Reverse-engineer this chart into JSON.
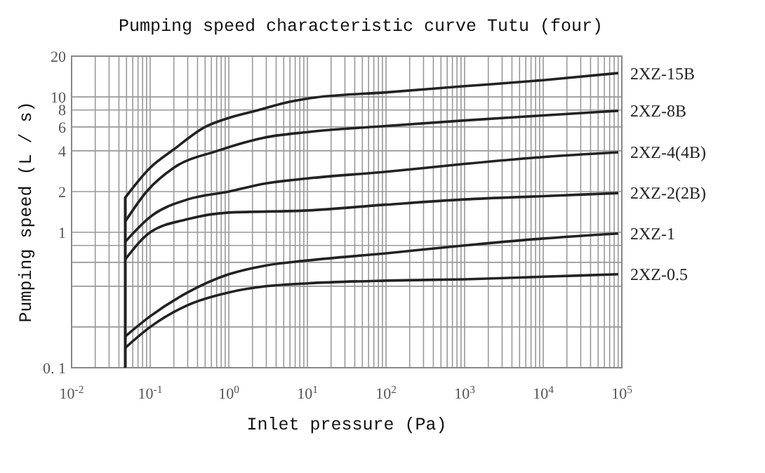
{
  "chart_data": {
    "type": "line",
    "title": "Pumping speed characteristic curve Tutu (four)",
    "xlabel": "Inlet pressure (Pa)",
    "ylabel": "Pumping speed (L / s)",
    "log": "xy",
    "grid": true,
    "marker": "none",
    "line_style": "solid",
    "xlim": [
      0.01,
      100000
    ],
    "ylim": [
      0.1,
      20
    ],
    "xticks": [
      {
        "value": 0.01,
        "label": "10$^{-2}$"
      },
      {
        "value": 0.02,
        "label": null
      },
      {
        "value": 0.03,
        "label": null
      },
      {
        "value": 0.04,
        "label": null
      },
      {
        "value": 0.05,
        "label": null
      },
      {
        "value": 0.06,
        "label": null
      },
      {
        "value": 0.07,
        "label": null
      },
      {
        "value": 0.08,
        "label": null
      },
      {
        "value": 0.09,
        "label": null
      },
      {
        "value": 0.1,
        "label": "10$^{-1}$"
      },
      {
        "value": 0.2,
        "label": null
      },
      {
        "value": 0.3,
        "label": null
      },
      {
        "value": 0.4,
        "label": null
      },
      {
        "value": 0.5,
        "label": null
      },
      {
        "value": 0.6,
        "label": null
      },
      {
        "value": 0.7,
        "label": null
      },
      {
        "value": 0.8,
        "label": null
      },
      {
        "value": 0.9,
        "label": null
      },
      {
        "value": 1,
        "label": "10$^{0}$"
      },
      {
        "value": 2,
        "label": null
      },
      {
        "value": 3,
        "label": null
      },
      {
        "value": 4,
        "label": null
      },
      {
        "value": 5,
        "label": null
      },
      {
        "value": 6,
        "label": null
      },
      {
        "value": 7,
        "label": null
      },
      {
        "value": 8,
        "label": null
      },
      {
        "value": 9,
        "label": null
      },
      {
        "value": 10,
        "label": "10$^{1}$"
      },
      {
        "value": 20,
        "label": null
      },
      {
        "value": 30,
        "label": null
      },
      {
        "value": 40,
        "label": null
      },
      {
        "value": 50,
        "label": null
      },
      {
        "value": 60,
        "label": null
      },
      {
        "value": 70,
        "label": null
      },
      {
        "value": 80,
        "label": null
      },
      {
        "value": 90,
        "label": null
      },
      {
        "value": 100,
        "label": "10$^{2}$"
      },
      {
        "value": 200,
        "label": null
      },
      {
        "value": 300,
        "label": null
      },
      {
        "value": 400,
        "label": null
      },
      {
        "value": 500,
        "label": null
      },
      {
        "value": 600,
        "label": null
      },
      {
        "value": 700,
        "label": null
      },
      {
        "value": 800,
        "label": null
      },
      {
        "value": 900,
        "label": null
      },
      {
        "value": 1000,
        "label": "10$^{3}$"
      },
      {
        "value": 2000,
        "label": null
      },
      {
        "value": 3000,
        "label": null
      },
      {
        "value": 4000,
        "label": null
      },
      {
        "value": 5000,
        "label": null
      },
      {
        "value": 6000,
        "label": null
      },
      {
        "value": 7000,
        "label": null
      },
      {
        "value": 8000,
        "label": null
      },
      {
        "value": 9000,
        "label": null
      },
      {
        "value": 10000,
        "label": "10$^{4}$"
      },
      {
        "value": 20000,
        "label": null
      },
      {
        "value": 30000,
        "label": null
      },
      {
        "value": 40000,
        "label": null
      },
      {
        "value": 50000,
        "label": null
      },
      {
        "value": 60000,
        "label": null
      },
      {
        "value": 70000,
        "label": null
      },
      {
        "value": 80000,
        "label": null
      },
      {
        "value": 90000,
        "label": null
      },
      {
        "value": 100000,
        "label": "10$^{5}$"
      }
    ],
    "yticks": [
      {
        "value": 0.1,
        "label": "0. 1"
      },
      {
        "value": 0.2,
        "label": null
      },
      {
        "value": 0.4,
        "label": null
      },
      {
        "value": 0.6,
        "label": null
      },
      {
        "value": 0.8,
        "label": null
      },
      1,
      2,
      4,
      6,
      8,
      10,
      20
    ],
    "series": [
      {
        "name": "2XZ-15B",
        "color": "#222222",
        "x": [
          0.048,
          0.048,
          0.1,
          0.2,
          0.5,
          1,
          2.4,
          5,
          11,
          100,
          1000,
          10000,
          90000
        ],
        "values": [
          0.1,
          1.8,
          3,
          4.1,
          6,
          7,
          8,
          9,
          9.8,
          10.8,
          12,
          13.3,
          15
        ]
      },
      {
        "name": "2XZ-8B",
        "color": "#222222",
        "x": [
          0.048,
          0.09,
          0.2,
          0.72,
          2.8,
          10,
          100,
          1000,
          10000,
          90000
        ],
        "values": [
          1.2,
          2,
          3,
          4,
          5,
          5.5,
          6.1,
          6.7,
          7.3,
          7.9
        ]
      },
      {
        "name": "2XZ-4(4B)",
        "color": "#222222",
        "x": [
          0.048,
          0.1,
          0.3,
          1,
          3,
          10,
          100,
          1000,
          10000,
          90000
        ],
        "values": [
          0.85,
          1.3,
          1.75,
          2,
          2.3,
          2.5,
          2.8,
          3.2,
          3.6,
          3.9
        ]
      },
      {
        "name": "2XZ-2(2B)",
        "color": "#222222",
        "x": [
          0.048,
          0.1,
          0.3,
          1,
          10,
          100,
          1000,
          10000,
          90000
        ],
        "values": [
          0.63,
          1,
          1.25,
          1.4,
          1.45,
          1.6,
          1.75,
          1.85,
          1.95
        ]
      },
      {
        "name": "2XZ-1",
        "color": "#222222",
        "x": [
          0.048,
          0.1,
          0.3,
          1,
          3,
          10,
          100,
          1000,
          10000,
          90000
        ],
        "values": [
          0.17,
          0.24,
          0.36,
          0.49,
          0.57,
          0.62,
          0.7,
          0.8,
          0.9,
          0.98
        ]
      },
      {
        "name": "2XZ-0.5",
        "color": "#222222",
        "x": [
          0.048,
          0.1,
          0.3,
          1,
          3,
          10,
          100,
          1000,
          10000,
          90000
        ],
        "values": [
          0.14,
          0.2,
          0.29,
          0.36,
          0.4,
          0.42,
          0.44,
          0.45,
          0.47,
          0.49
        ]
      }
    ]
  }
}
